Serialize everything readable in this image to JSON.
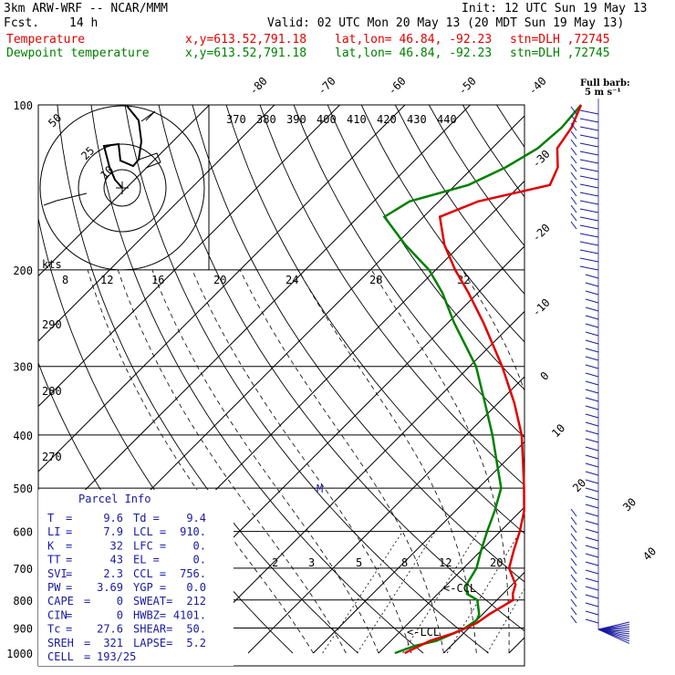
{
  "header": {
    "model": "3km ARW-WRF -- NCAR/MMM",
    "init": "Init: 12 UTC Sun 19 May 13",
    "fcst_label": "Fcst.",
    "fcst_value": "14 h",
    "valid": "Valid: 02 UTC Mon 20 May 13 (20 MDT Sun 19 May 13)",
    "temp_label": "Temperature",
    "dew_label": "Dewpoint temperature",
    "xy": "x,y=613.52,791.18",
    "latlon": "lat,lon= 46.84, -92.23",
    "stn": "stn=DLH ,72745"
  },
  "barb_legend": {
    "title": "Full barb:",
    "value": "5 m s⁻¹"
  },
  "colors": {
    "temperature": "#e00000",
    "dewpoint": "#008000",
    "wind": "#1a1aa0",
    "panel": "#1a1aa0"
  },
  "chart_data": {
    "type": "line",
    "subtype": "skew-T log-P",
    "y_axis_label_values": [
      100,
      200,
      300,
      400,
      500,
      600,
      700,
      800,
      900,
      1000
    ],
    "ylim": [
      1000,
      100
    ],
    "y_scale": "log",
    "isotherm_labels": [
      "-80",
      "-70",
      "-60",
      "-50",
      "-40",
      "-30",
      "-20",
      "-10",
      "0",
      "10",
      "20",
      "30",
      "40"
    ],
    "theta_labels": [
      "370",
      "380",
      "390",
      "400",
      "410",
      "420",
      "430",
      "440"
    ],
    "theta_labels_low": [
      "290",
      "280",
      "270"
    ],
    "mixing_ratio_labels": [
      "2",
      "3",
      "5",
      "8",
      "12",
      "20"
    ],
    "hodograph": {
      "units": "kts",
      "ring_labels": [
        "50",
        "25",
        "10"
      ],
      "speed_axis_labels": [
        "8",
        "12",
        "16",
        "20",
        "24",
        "28",
        "32"
      ]
    },
    "series": [
      {
        "name": "Temperature",
        "points": [
          [
            1000,
            4.0
          ],
          [
            950,
            6.0
          ],
          [
            920,
            8.5
          ],
          [
            900,
            9.6
          ],
          [
            880,
            10.5
          ],
          [
            850,
            11.0
          ],
          [
            800,
            12.5
          ],
          [
            780,
            11.5
          ],
          [
            750,
            10.5
          ],
          [
            700,
            7.0
          ],
          [
            650,
            5.0
          ],
          [
            600,
            3.0
          ],
          [
            550,
            0.5
          ],
          [
            500,
            -3.0
          ],
          [
            450,
            -7.0
          ],
          [
            400,
            -11.5
          ],
          [
            350,
            -17.5
          ],
          [
            300,
            -25.0
          ],
          [
            250,
            -34.5
          ],
          [
            220,
            -41.5
          ],
          [
            200,
            -47.0
          ],
          [
            180,
            -52.5
          ],
          [
            160,
            -57.5
          ],
          [
            150,
            -54.0
          ],
          [
            140,
            -45.5
          ],
          [
            130,
            -47.0
          ],
          [
            120,
            -50.0
          ],
          [
            110,
            -51.0
          ],
          [
            100,
            -53.0
          ]
        ]
      },
      {
        "name": "Dewpoint temperature",
        "points": [
          [
            1000,
            2.5
          ],
          [
            970,
            4.5
          ],
          [
            950,
            7.0
          ],
          [
            920,
            8.5
          ],
          [
            900,
            9.4
          ],
          [
            870,
            10.0
          ],
          [
            850,
            9.5
          ],
          [
            800,
            7.0
          ],
          [
            780,
            4.5
          ],
          [
            750,
            3.0
          ],
          [
            700,
            2.0
          ],
          [
            650,
            0.0
          ],
          [
            600,
            -2.0
          ],
          [
            550,
            -4.0
          ],
          [
            500,
            -6.5
          ],
          [
            450,
            -11.0
          ],
          [
            400,
            -16.0
          ],
          [
            350,
            -22.0
          ],
          [
            300,
            -29.0
          ],
          [
            250,
            -39.0
          ],
          [
            220,
            -45.5
          ],
          [
            200,
            -51.0
          ],
          [
            180,
            -58.5
          ],
          [
            160,
            -66.0
          ],
          [
            150,
            -64.5
          ],
          [
            140,
            -58.0
          ],
          [
            130,
            -55.0
          ],
          [
            120,
            -53.0
          ],
          [
            110,
            -52.5
          ],
          [
            100,
            -53.0
          ]
        ]
      }
    ],
    "markers": [
      {
        "label": "<-CCL",
        "pressure": 756
      },
      {
        "label": "<-LCL",
        "pressure": 910
      },
      {
        "label": "M",
        "pressure": 500
      }
    ]
  },
  "parcel_info": {
    "title": "Parcel Info",
    "rows": [
      {
        "l1": "T",
        "v1": "9.6",
        "l2": "Td =",
        "v2": "9.4"
      },
      {
        "l1": "LI",
        "v1": "7.9",
        "l2": "LCL =",
        "v2": "910."
      },
      {
        "l1": "K",
        "v1": "32",
        "l2": "LFC =",
        "v2": "0."
      },
      {
        "l1": "TT",
        "v1": "43",
        "l2": "EL =",
        "v2": "0."
      },
      {
        "l1": "SVI",
        "v1": "2.3",
        "l2": "CCL =",
        "v2": "756."
      },
      {
        "l1": "PW",
        "v1": "3.69",
        "l2": "YGP =",
        "v2": "0.0"
      },
      {
        "l1": "CAPE",
        "v1": "0",
        "l2": "SWEAT=",
        "v2": "212"
      },
      {
        "l1": "CIN",
        "v1": "0",
        "l2": "HWBZ=",
        "v2": "4101."
      },
      {
        "l1": "Tc",
        "v1": "27.6",
        "l2": "SHEAR=",
        "v2": "50."
      },
      {
        "l1": "SREH",
        "v1": "321",
        "l2": "LAPSE=",
        "v2": "5.2"
      },
      {
        "l1": "CELL",
        "v1": "193/25",
        "l2": "",
        "v2": ""
      }
    ]
  }
}
